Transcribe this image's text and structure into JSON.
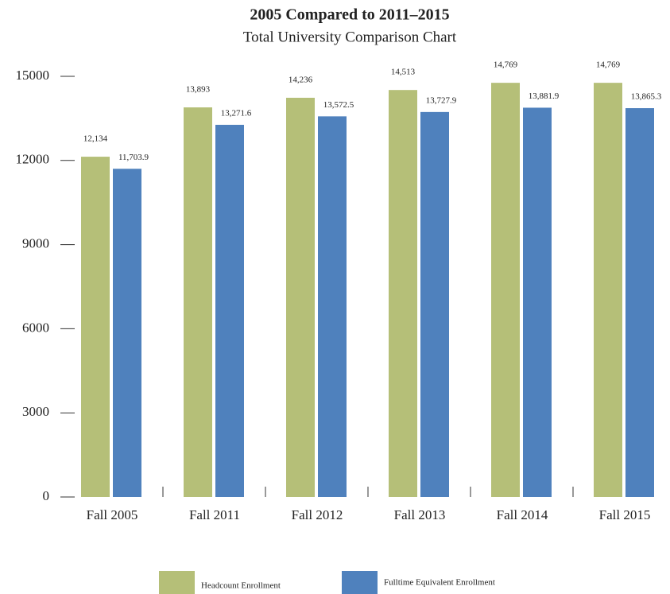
{
  "chart_data": {
    "type": "bar",
    "title": "2005 Compared to 2011–2015",
    "subtitle": "Total University Comparison Chart",
    "categories": [
      "Fall 2005",
      "Fall 2011",
      "Fall 2012",
      "Fall 2013",
      "Fall 2014",
      "Fall 2015"
    ],
    "series": [
      {
        "name": "Headcount Enrollment",
        "color": "#b5bf78",
        "values": [
          12134,
          13893,
          14236,
          14513,
          14769,
          14769
        ],
        "value_labels": [
          "12,134",
          "13,893",
          "14,236",
          "14,513",
          "14,769",
          "14,769"
        ]
      },
      {
        "name": "Fulltime Equivalent Enrollment",
        "color": "#4f81bd",
        "values": [
          11703.9,
          13271.6,
          13572.5,
          13727.9,
          13881.9,
          13865.3
        ],
        "value_labels": [
          "11,703.9",
          "13,271.6",
          "13,572.5",
          "13,727.9",
          "13,881.9",
          "13,865.3"
        ]
      }
    ],
    "ylim": [
      0,
      15000
    ],
    "yticks": [
      0,
      3000,
      6000,
      9000,
      12000,
      15000
    ],
    "legend": "bottom"
  }
}
